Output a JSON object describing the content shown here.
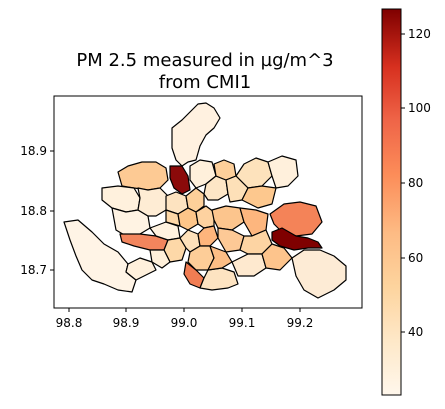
{
  "title_line1": "PM 2.5 measured in µg/m^3",
  "title_line2": "from CMI1",
  "x_ticks": [
    "98.8",
    "98.9",
    "99.0",
    "99.1",
    "99.2"
  ],
  "y_ticks": [
    "18.9",
    "18.8",
    "18.7"
  ],
  "colorbar": {
    "colormap": "OrRd",
    "min": 22,
    "max": 126,
    "ticks": [
      "120",
      "100",
      "80",
      "60",
      "40"
    ]
  },
  "colors": {
    "lowest": "#fff7ec",
    "low": "#fee8c8",
    "mid_low": "#fdd49e",
    "mid": "#fdbb84",
    "mid_high": "#fc8d59",
    "high": "#ef6548",
    "very_high": "#d7301f",
    "highest": "#7f0000",
    "border": "#000000"
  }
}
